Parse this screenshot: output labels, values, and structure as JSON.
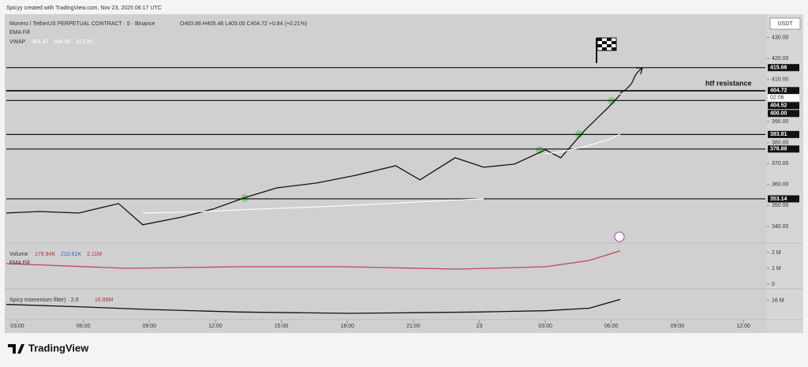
{
  "header": {
    "credit": "Spicyy created with TradingView.com, Nov 23, 2025 06:17 UTC",
    "currency": "USDT"
  },
  "footer": {
    "brand": "TradingView"
  },
  "chart_data": [
    {
      "type": "line",
      "title": "Monero / TetherUS PERPETUAL CONTRACT · 5 · Binance",
      "ohlc": "O403.86 H405.46 L403.00 C404.72 +0.84 (+0.21%)",
      "indicator": "EMA Fill",
      "x": [
        -0.5,
        1.0,
        2.8,
        4.6,
        5.7,
        7.5,
        8.9,
        10.4,
        11.8,
        13.6,
        15.4,
        17.2,
        18.3,
        19.9,
        21.2,
        22.6,
        24.0,
        24.7,
        25.8,
        26.9,
        27.4
      ],
      "series": [
        {
          "color": "#111111",
          "values": [
            346.4,
            347.1,
            346.4,
            350.9,
            340.8,
            344.5,
            348.3,
            353.9,
            358.4,
            360.7,
            364.4,
            368.9,
            362.2,
            372.7,
            368.2,
            369.7,
            376.5,
            372.7,
            385.9,
            397.1,
            402.8
          ]
        },
        {
          "name": "VWAP",
          "color": "#ffffff",
          "legend_values": [
            384.47,
            394.98,
            373.95
          ],
          "values": [
            null,
            null,
            null,
            null,
            346.4,
            346.8,
            347.3,
            348.0,
            348.6,
            349.3,
            350.2,
            351.1,
            351.7,
            352.6,
            353.2,
            null,
            374.6,
            375.5,
            378.0,
            381.5,
            384.0
          ]
        }
      ],
      "xlim": [
        -0.5,
        34.0
      ],
      "ylim": [
        333.2,
        441.1
      ],
      "yticks": [
        {
          "value": 430,
          "label": "430.00"
        },
        {
          "value": 420,
          "label": "420.00"
        },
        {
          "value": 410,
          "label": "410.00"
        },
        {
          "value": 390,
          "label": "390.00"
        },
        {
          "value": 380,
          "label": "380.00"
        },
        {
          "value": 370,
          "label": "370.00"
        },
        {
          "value": 360,
          "label": "360.00"
        },
        {
          "value": 350,
          "label": "350.00"
        },
        {
          "value": 340,
          "label": "340.00"
        }
      ],
      "levels": [
        415.66,
        404.72,
        404.52,
        {
          "value": 400,
          "label": "400.00"
        },
        383.81,
        376.88,
        353.14
      ],
      "countdown": "02:06",
      "annotation": "htf resistance"
    },
    {
      "type": "line",
      "title": "Volume",
      "legend_values": [
        "179.94K",
        "210.61K",
        "2.11M"
      ],
      "indicator": "EMA Fill",
      "x": [
        -0.5,
        5,
        10,
        15,
        20,
        24,
        26,
        27.4
      ],
      "series": [
        {
          "color": "#c0475a",
          "values": [
            1.3,
            1.0,
            1.1,
            1.1,
            0.95,
            1.1,
            1.5,
            2.11
          ]
        }
      ],
      "xlim": [
        -0.5,
        34.0
      ],
      "ylim": [
        -0.3,
        2.4
      ],
      "yticks": [
        {
          "value": 2,
          "label": "2 M"
        },
        {
          "value": 1,
          "label": "1 M"
        },
        0
      ]
    },
    {
      "type": "line",
      "title": "Spicy momentum filter) · 2.0",
      "legend_values": [
        "16.89M"
      ],
      "x": [
        -0.5,
        3,
        6,
        10,
        15,
        18,
        21,
        24,
        26,
        27.4
      ],
      "series": [
        {
          "color": "#111111",
          "values": [
            13,
            11,
            9,
            7,
            6,
            6.5,
            7,
            8,
            10,
            16.89
          ]
        }
      ],
      "xlim": [
        -0.5,
        34.0
      ],
      "ylim": [
        1,
        24
      ],
      "yticks": [
        {
          "value": 16,
          "label": "16 M"
        }
      ],
      "xticks": [
        {
          "value": 0,
          "label": "03:00"
        },
        {
          "value": 3,
          "label": "06:00"
        },
        {
          "value": 6,
          "label": "09:00"
        },
        {
          "value": 9,
          "label": "12:00"
        },
        {
          "value": 12,
          "label": "15:00"
        },
        {
          "value": 15,
          "label": "18:00"
        },
        {
          "value": 18,
          "label": "21:00"
        },
        {
          "value": 21,
          "label": "23"
        },
        {
          "value": 24,
          "label": "03:00"
        },
        {
          "value": 27,
          "label": "06:00"
        },
        {
          "value": 30,
          "label": "09:00"
        },
        {
          "value": 33,
          "label": "12:00"
        }
      ]
    }
  ]
}
